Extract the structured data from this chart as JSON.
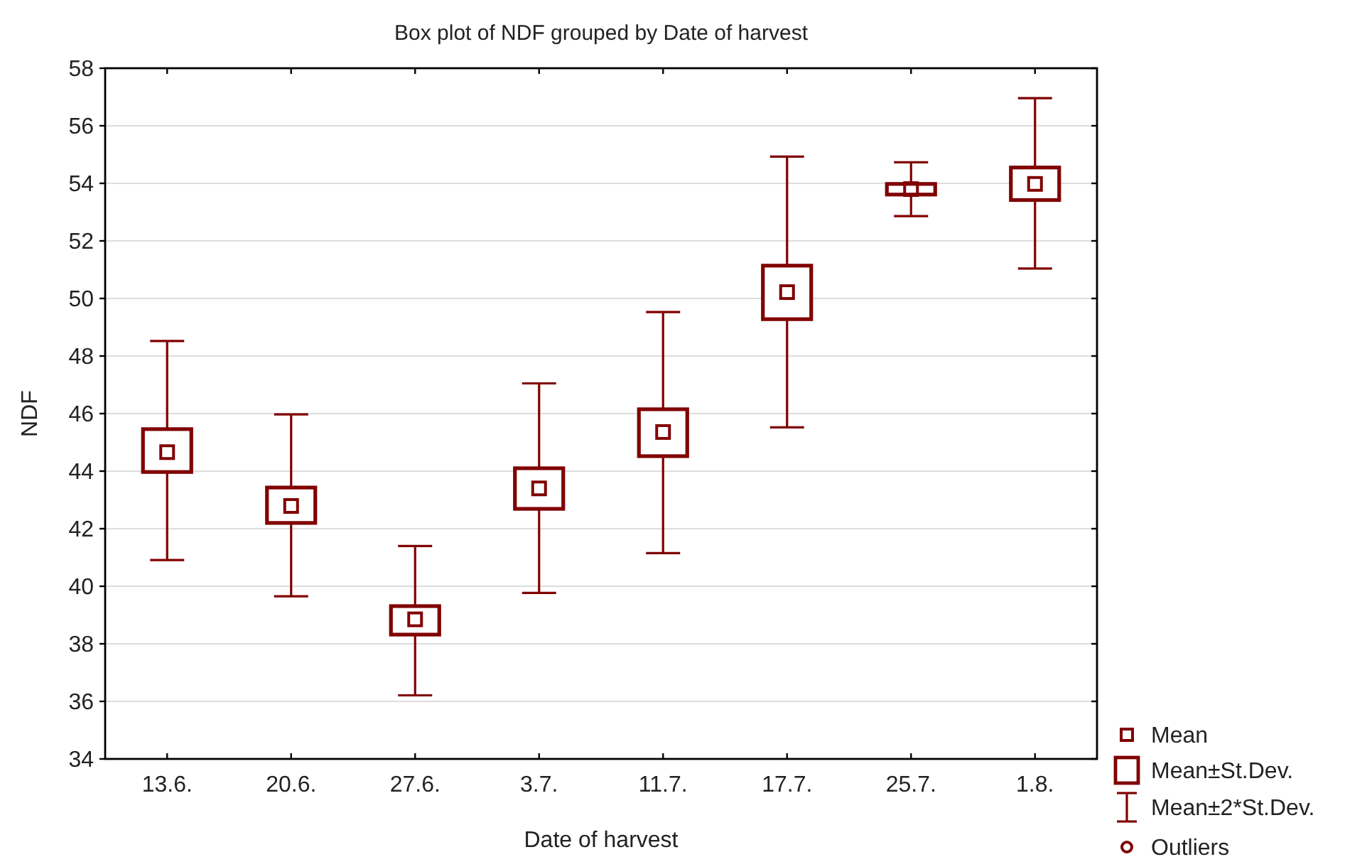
{
  "chart_data": {
    "type": "box",
    "title": "Box plot of NDF grouped by Date of harvest",
    "xlabel": "Date of harvest",
    "ylabel": "NDF",
    "categories": [
      "13.6.",
      "20.6.",
      "27.6.",
      "3.7.",
      "11.7.",
      "17.7.",
      "25.7.",
      "1.8."
    ],
    "color": "#800000",
    "boxes": [
      {
        "low": 40.91,
        "q1": 43.97,
        "median": 44.66,
        "q3": 45.46,
        "high": 48.52
      },
      {
        "low": 39.65,
        "q1": 42.2,
        "median": 42.79,
        "q3": 43.43,
        "high": 45.97
      },
      {
        "low": 36.21,
        "q1": 38.32,
        "median": 38.85,
        "q3": 39.31,
        "high": 41.4
      },
      {
        "low": 39.77,
        "q1": 42.69,
        "median": 43.4,
        "q3": 44.1,
        "high": 47.05
      },
      {
        "low": 41.15,
        "q1": 44.52,
        "median": 45.36,
        "q3": 46.15,
        "high": 49.53
      },
      {
        "low": 45.52,
        "q1": 49.28,
        "median": 50.22,
        "q3": 51.14,
        "high": 54.93
      },
      {
        "low": 52.86,
        "q1": 53.61,
        "median": 53.8,
        "q3": 53.98,
        "high": 54.73
      },
      {
        "low": 51.04,
        "q1": 53.42,
        "median": 53.98,
        "q3": 54.55,
        "high": 56.96
      }
    ],
    "ylim": [
      34,
      58
    ],
    "yticks": [
      34,
      36,
      38,
      40,
      42,
      44,
      46,
      48,
      50,
      52,
      54,
      56,
      58
    ],
    "grid": "y",
    "annotations": [
      "Mean",
      "Mean±St.Dev.",
      "Mean±2*St.Dev.",
      "Outliers"
    ]
  }
}
